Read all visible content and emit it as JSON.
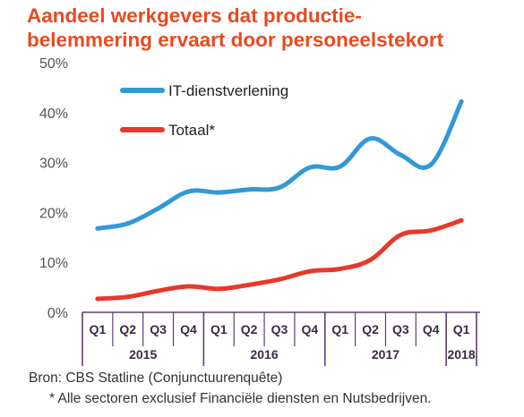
{
  "chart_data": {
    "type": "line",
    "title": [
      "Aandeel werkgevers dat productie-",
      "belemmering ervaart door personeelstekort"
    ],
    "x_quarters": [
      "Q1",
      "Q2",
      "Q3",
      "Q4",
      "Q1",
      "Q2",
      "Q3",
      "Q4",
      "Q1",
      "Q2",
      "Q3",
      "Q4",
      "Q1"
    ],
    "x_years": [
      {
        "label": "2015",
        "quarters": 4
      },
      {
        "label": "2016",
        "quarters": 4
      },
      {
        "label": "2017",
        "quarters": 4
      },
      {
        "label": "2018",
        "quarters": 1
      }
    ],
    "y_ticks": [
      "0%",
      "10%",
      "20%",
      "30%",
      "40%",
      "50%"
    ],
    "ylim": [
      0,
      50
    ],
    "grid": false,
    "legend_position": "top-left",
    "series": [
      {
        "name": "IT-dienstverlening",
        "color": "#3399d6",
        "values": [
          16.8,
          17.8,
          20.8,
          24.2,
          24.0,
          24.6,
          25.0,
          29.0,
          29.2,
          34.8,
          31.5,
          29.6,
          42.2
        ]
      },
      {
        "name": "Totaal*",
        "color": "#e6392b",
        "values": [
          2.7,
          3.1,
          4.3,
          5.2,
          4.7,
          5.5,
          6.6,
          8.2,
          8.7,
          10.5,
          15.5,
          16.4,
          18.4
        ]
      }
    ]
  },
  "source": "Bron: CBS Statline (Conjunctuurenquête)",
  "footnote": "* Alle sectoren exclusief Financiële diensten en Nutsbedrijven."
}
